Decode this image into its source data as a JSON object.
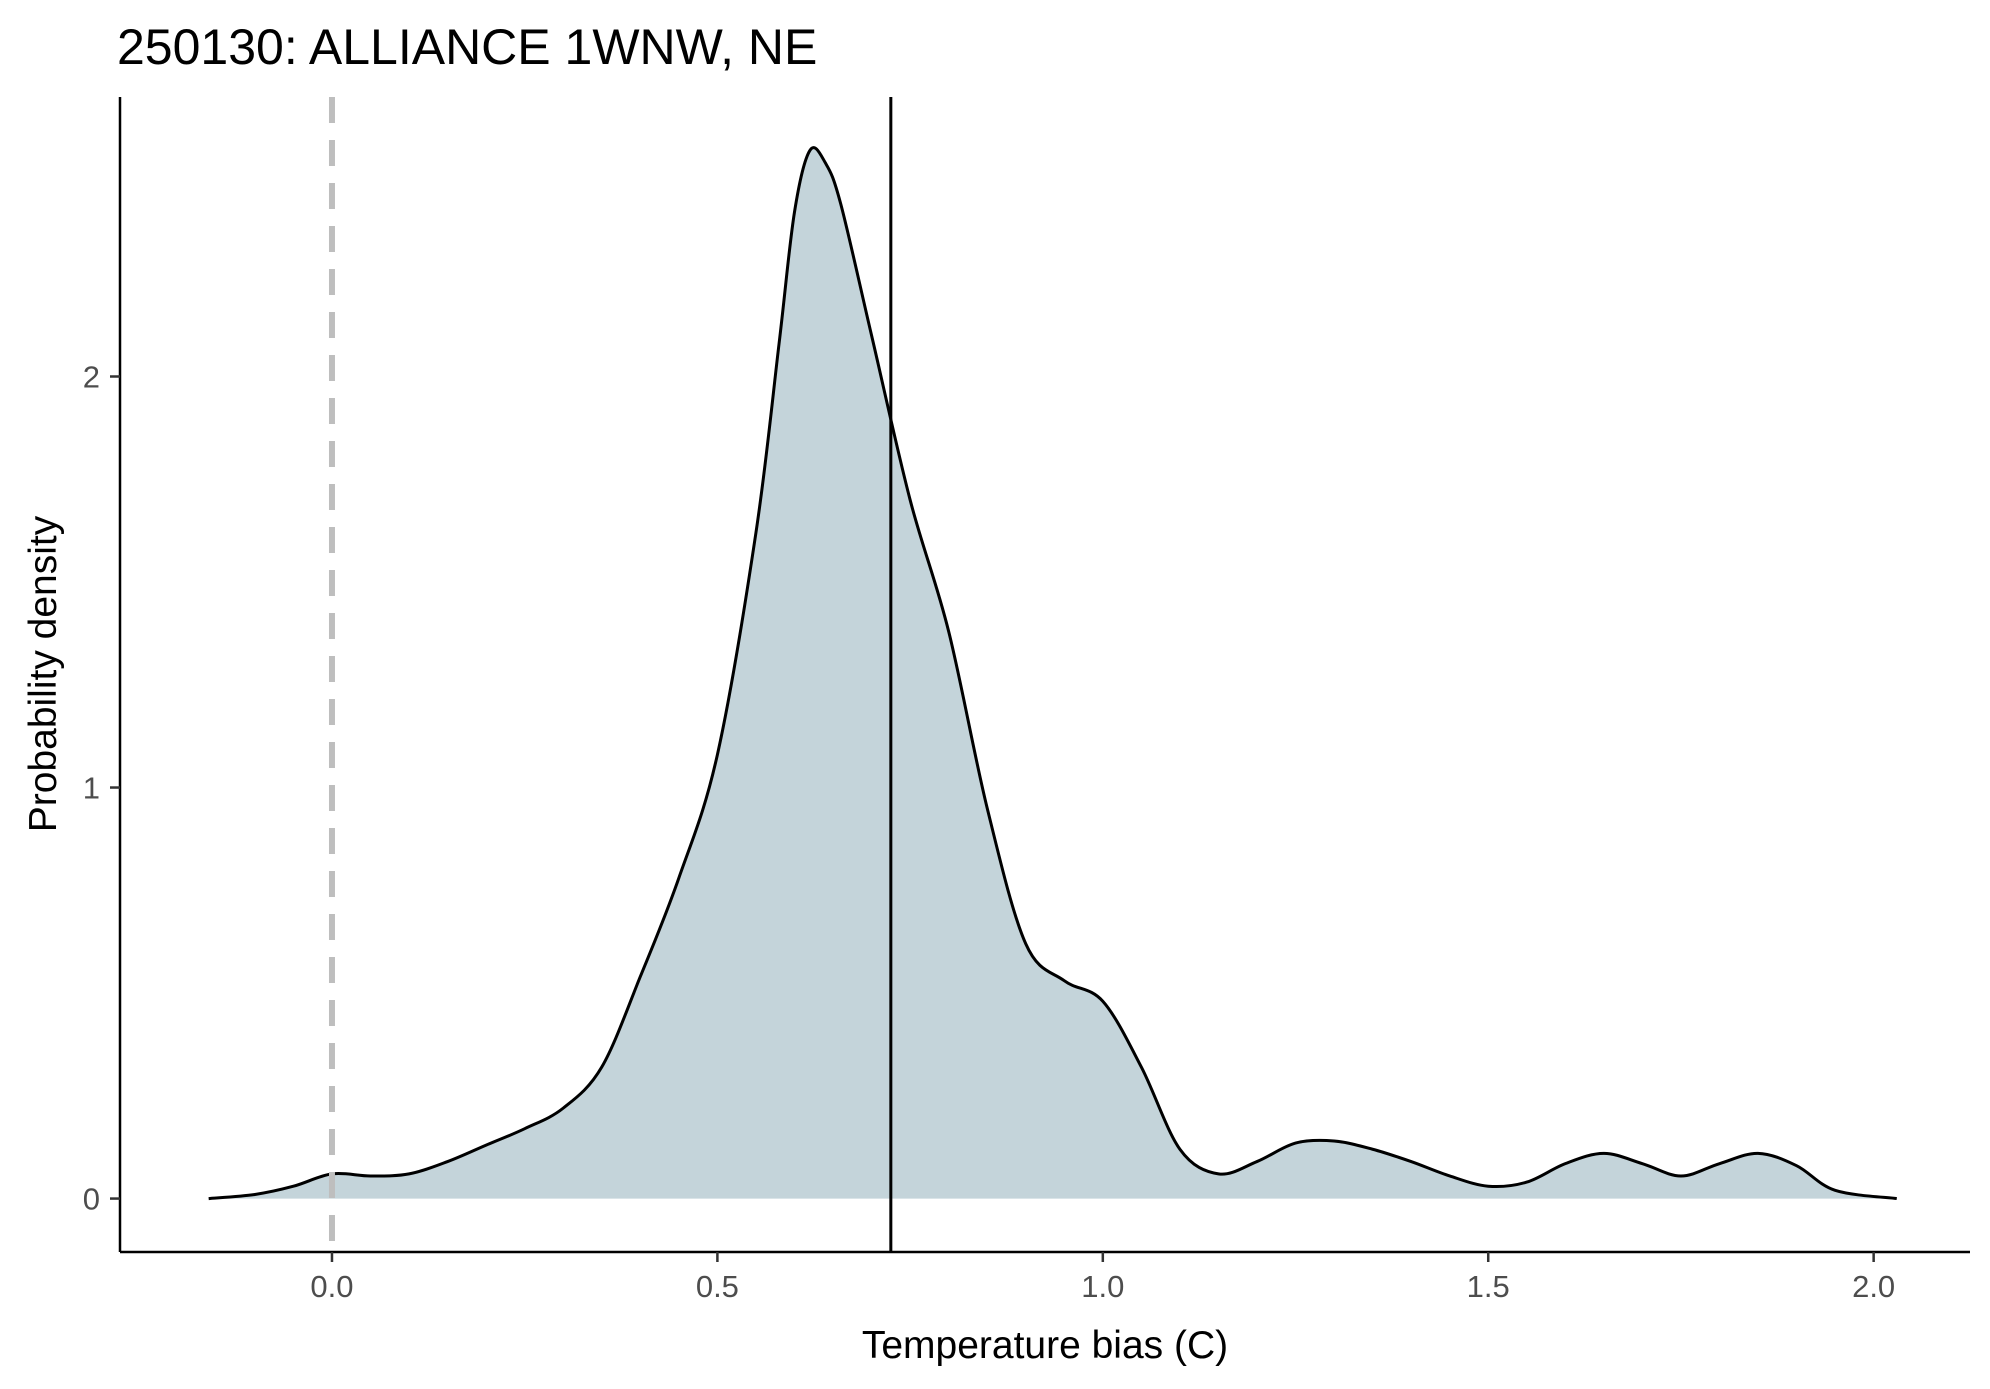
{
  "chart_data": {
    "type": "area",
    "title": "250130: ALLIANCE 1WNW, NE",
    "xlabel": "Temperature bias (C)",
    "ylabel": "Probability density",
    "xlim": [
      -0.275,
      2.125
    ],
    "ylim": [
      -0.13,
      2.68
    ],
    "x_ticks": [
      0.0,
      0.5,
      1.0,
      1.5,
      2.0
    ],
    "x_tick_labels": [
      "0.0",
      "0.5",
      "1.0",
      "1.5",
      "2.0"
    ],
    "y_ticks": [
      0,
      1,
      2
    ],
    "y_tick_labels": [
      "0",
      "1",
      "2"
    ],
    "grid": false,
    "legend": "none",
    "series": [
      {
        "x": [
          -0.16,
          -0.1,
          -0.05,
          0.0,
          0.05,
          0.1,
          0.15,
          0.2,
          0.25,
          0.3,
          0.35,
          0.4,
          0.45,
          0.5,
          0.55,
          0.58,
          0.6,
          0.62,
          0.64,
          0.66,
          0.7,
          0.75,
          0.8,
          0.85,
          0.9,
          0.95,
          1.0,
          1.05,
          1.1,
          1.15,
          1.2,
          1.25,
          1.3,
          1.35,
          1.4,
          1.45,
          1.5,
          1.55,
          1.6,
          1.65,
          1.7,
          1.75,
          1.8,
          1.85,
          1.9,
          1.95,
          2.03
        ],
        "y": [
          0.0,
          0.01,
          0.03,
          0.06,
          0.055,
          0.06,
          0.09,
          0.13,
          0.17,
          0.22,
          0.32,
          0.54,
          0.78,
          1.08,
          1.62,
          2.08,
          2.4,
          2.55,
          2.52,
          2.42,
          2.1,
          1.7,
          1.38,
          0.95,
          0.62,
          0.53,
          0.48,
          0.32,
          0.12,
          0.06,
          0.09,
          0.135,
          0.14,
          0.12,
          0.09,
          0.055,
          0.03,
          0.04,
          0.085,
          0.11,
          0.085,
          0.055,
          0.085,
          0.11,
          0.08,
          0.02,
          0.0
        ],
        "fill": "#c4d4da",
        "stroke": "#000000"
      }
    ],
    "vlines": [
      {
        "x": 0.0,
        "style": "dashed",
        "color": "#bebebe"
      },
      {
        "x": 0.725,
        "style": "solid",
        "color": "#000000"
      }
    ]
  }
}
